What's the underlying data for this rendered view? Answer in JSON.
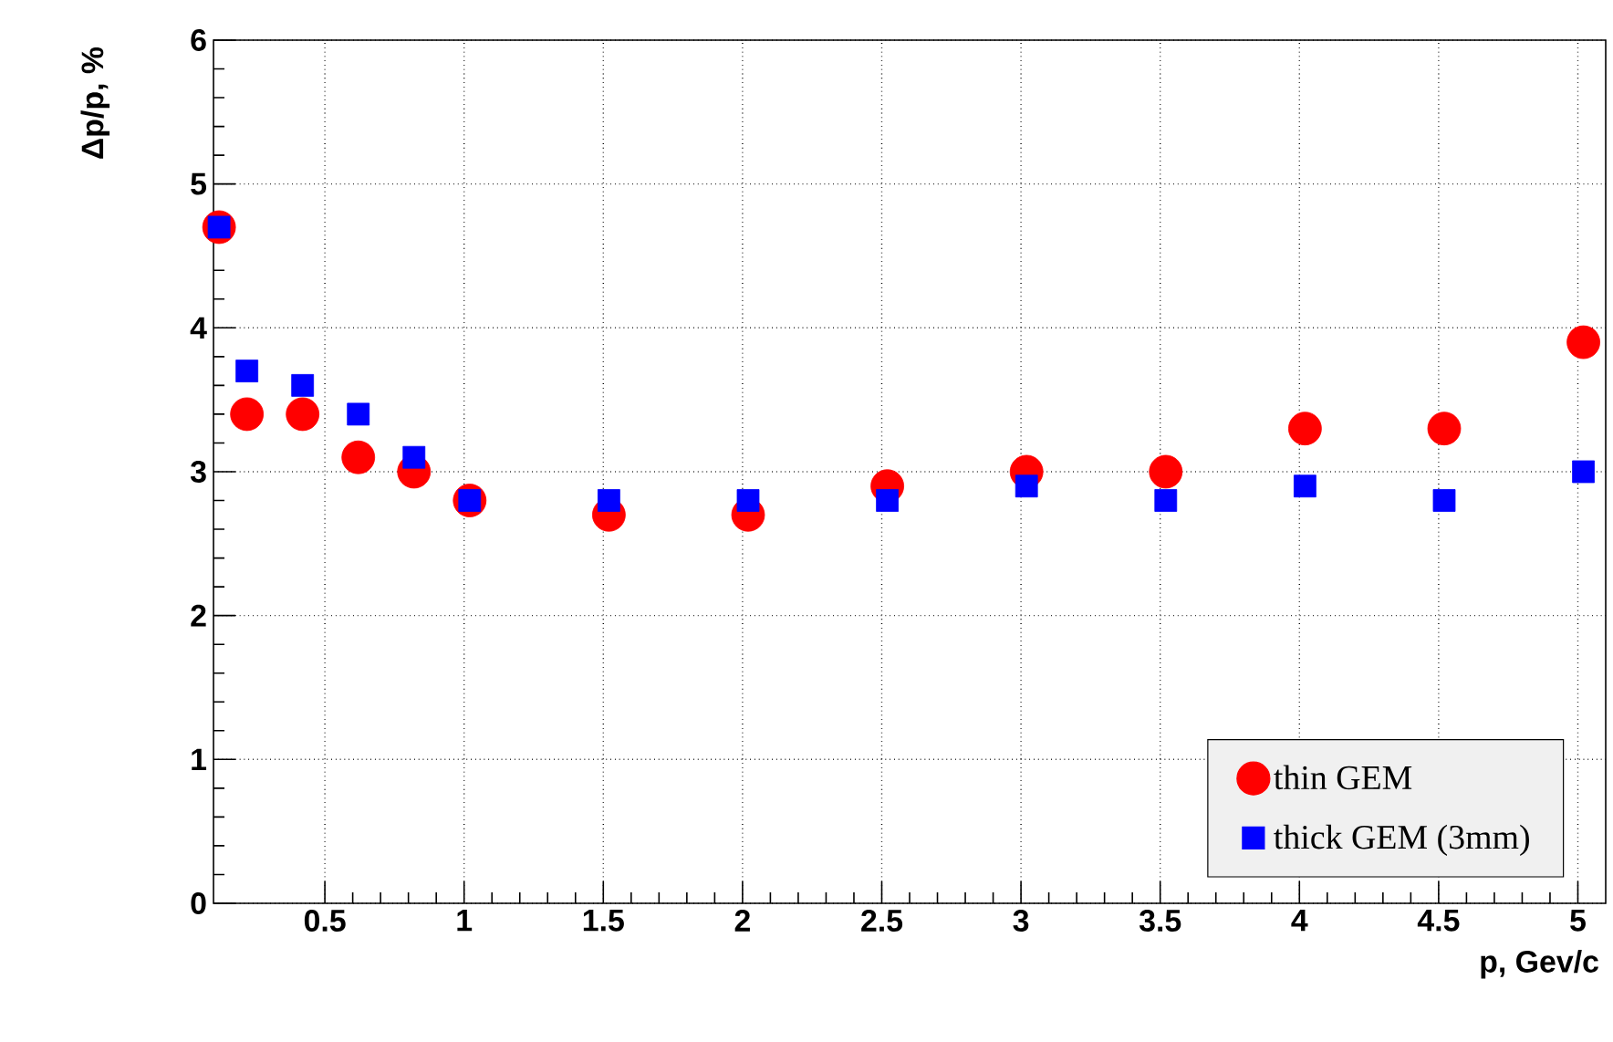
{
  "chart_data": {
    "type": "scatter",
    "xlabel": "p, Gev/c",
    "ylabel": "Δp/p, %",
    "xlim": [
      0.1,
      5.1
    ],
    "ylim": [
      0,
      6
    ],
    "xticks": [
      0.5,
      1,
      1.5,
      2,
      2.5,
      3,
      3.5,
      4,
      4.5,
      5
    ],
    "yticks": [
      0,
      1,
      2,
      3,
      4,
      5,
      6
    ],
    "grid": true,
    "legend": "bottom right",
    "x": [
      0.12,
      0.22,
      0.42,
      0.62,
      0.82,
      1.02,
      1.52,
      2.02,
      2.52,
      3.02,
      3.52,
      4.02,
      4.52,
      5.02
    ],
    "series": [
      {
        "name": "thin GEM",
        "color": "#ff0000",
        "marker": "circle",
        "values": [
          4.7,
          3.4,
          3.4,
          3.1,
          3.0,
          2.8,
          2.7,
          2.7,
          2.9,
          3.0,
          3.0,
          3.3,
          3.3,
          3.9
        ]
      },
      {
        "name": "thick GEM (3mm)",
        "color": "#0000ff",
        "marker": "square",
        "values": [
          4.7,
          3.7,
          3.6,
          3.4,
          3.1,
          2.8,
          2.8,
          2.8,
          2.8,
          2.9,
          2.8,
          2.9,
          2.8,
          3.0
        ]
      }
    ]
  }
}
